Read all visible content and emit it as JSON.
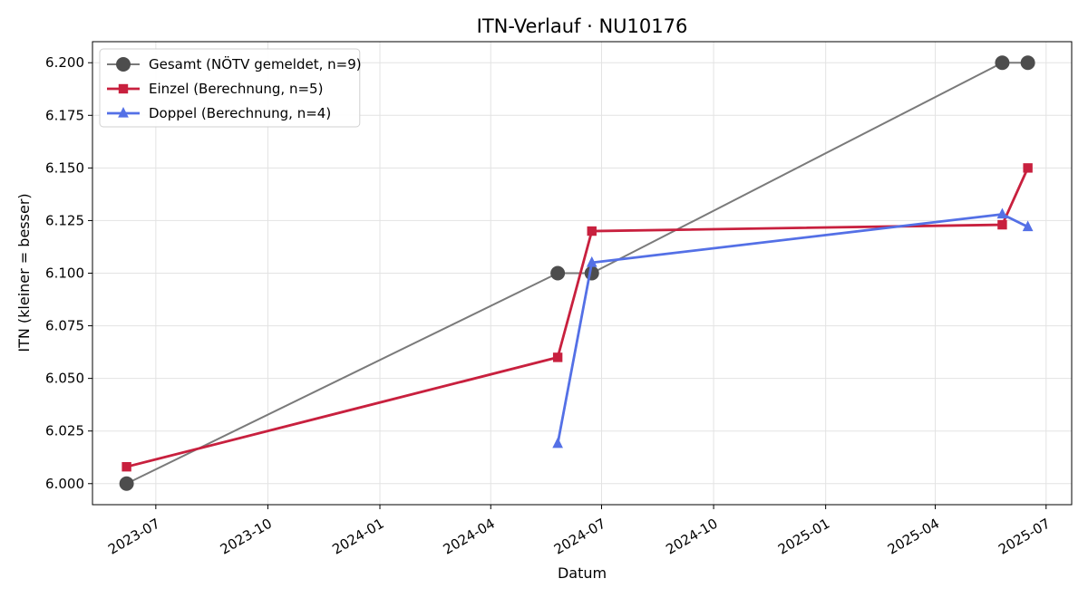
{
  "chart_data": {
    "type": "line",
    "title": "ITN-Verlauf · NU10176",
    "xlabel": "Datum",
    "ylabel": "ITN  (kleiner = besser)",
    "x_axis_type": "date",
    "xlim": [
      "2023-05-10",
      "2025-07-22"
    ],
    "ylim": [
      5.99,
      6.21
    ],
    "x_ticks": [
      "2023-07-01",
      "2023-10-01",
      "2024-01-01",
      "2024-04-01",
      "2024-07-01",
      "2024-10-01",
      "2025-01-01",
      "2025-04-01",
      "2025-07-01"
    ],
    "x_tick_labels": [
      "2023-07",
      "2023-10",
      "2024-01",
      "2024-04",
      "2024-07",
      "2024-10",
      "2025-01",
      "2025-04",
      "2025-07"
    ],
    "y_ticks": [
      6.0,
      6.025,
      6.05,
      6.075,
      6.1,
      6.125,
      6.15,
      6.175,
      6.2
    ],
    "y_tick_labels": [
      "6.000",
      "6.025",
      "6.050",
      "6.075",
      "6.100",
      "6.125",
      "6.150",
      "6.175",
      "6.200"
    ],
    "grid": true,
    "legend_position": "top-left",
    "series": [
      {
        "name": "Gesamt (NÖTV gemeldet, n=9)",
        "color": "#7a7a7a",
        "marker_color": "#4d4d4d",
        "marker": "circle",
        "x": [
          "2023-06-07",
          "2024-05-26",
          "2024-06-23",
          "2025-05-26",
          "2025-06-16"
        ],
        "y": [
          6.0,
          6.1,
          6.1,
          6.2,
          6.2
        ]
      },
      {
        "name": "Einzel (Berechnung, n=5)",
        "color": "#c8203e",
        "marker_color": "#c8203e",
        "marker": "square",
        "x": [
          "2023-06-07",
          "2024-05-26",
          "2024-06-23",
          "2025-05-26",
          "2025-06-16"
        ],
        "y": [
          6.008,
          6.06,
          6.12,
          6.123,
          6.15
        ]
      },
      {
        "name": "Doppel (Berechnung, n=4)",
        "color": "#5470e6",
        "marker_color": "#5470e6",
        "marker": "triangle",
        "x": [
          "2024-05-26",
          "2024-06-23",
          "2025-05-26",
          "2025-06-16"
        ],
        "y": [
          6.019,
          6.105,
          6.128,
          6.122
        ]
      }
    ]
  }
}
